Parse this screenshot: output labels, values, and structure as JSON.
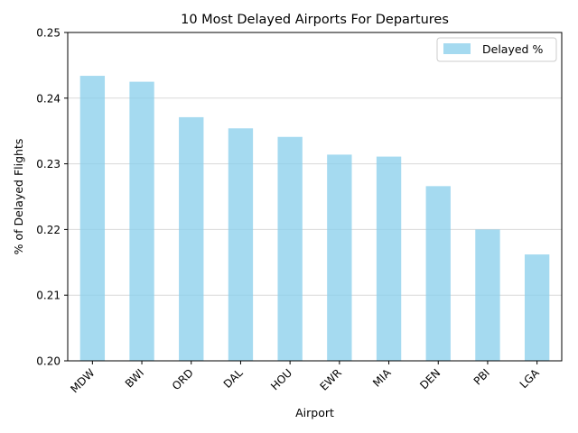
{
  "chart_data": {
    "type": "bar",
    "title": "10 Most Delayed Airports For Departures",
    "xlabel": "Airport",
    "ylabel": "% of Delayed Flights",
    "categories": [
      "MDW",
      "BWI",
      "ORD",
      "DAL",
      "HOU",
      "EWR",
      "MIA",
      "DEN",
      "PBI",
      "LGA"
    ],
    "series": [
      {
        "name": "Delayed %",
        "color": "#87ceeb",
        "values": [
          0.2434,
          0.2425,
          0.2371,
          0.2354,
          0.2341,
          0.2314,
          0.2311,
          0.2266,
          0.22,
          0.2162
        ]
      }
    ],
    "ylim": [
      0.2,
      0.25
    ],
    "yticks": [
      "0.20",
      "0.21",
      "0.22",
      "0.23",
      "0.24",
      "0.25"
    ],
    "grid": "y",
    "legend_position": "top-right"
  }
}
